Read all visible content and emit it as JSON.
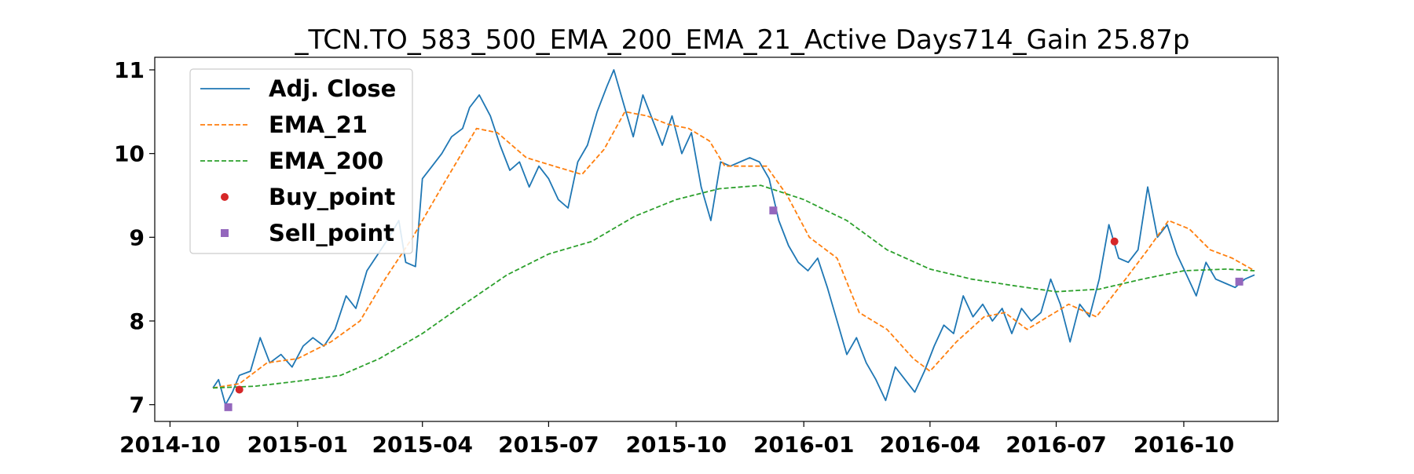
{
  "chart_data": {
    "type": "line",
    "title": "_TCN.TO_583_500_EMA_200_EMA_21_Active Days714_Gain  25.87p",
    "xlabel": "",
    "ylabel": "",
    "x_ticks": [
      "2014-10",
      "2015-01",
      "2015-04",
      "2015-07",
      "2015-10",
      "2016-01",
      "2016-04",
      "2016-07",
      "2016-10"
    ],
    "y_ticks": [
      "7",
      "8",
      "9",
      "10",
      "11"
    ],
    "xlim": [
      "2014-09-20",
      "2016-12-08"
    ],
    "ylim": [
      6.8,
      11.15
    ],
    "grid": false,
    "legend_position": "top-left",
    "series": [
      {
        "name": "Adj. Close",
        "style": "solid",
        "color": "#1f77b4",
        "points": [
          [
            "2014-11-01",
            7.2
          ],
          [
            "2014-11-05",
            7.3
          ],
          [
            "2014-11-10",
            7.0
          ],
          [
            "2014-11-15",
            7.15
          ],
          [
            "2014-11-20",
            7.35
          ],
          [
            "2014-11-28",
            7.4
          ],
          [
            "2014-12-05",
            7.8
          ],
          [
            "2014-12-12",
            7.5
          ],
          [
            "2014-12-20",
            7.6
          ],
          [
            "2014-12-28",
            7.45
          ],
          [
            "2015-01-05",
            7.7
          ],
          [
            "2015-01-12",
            7.8
          ],
          [
            "2015-01-20",
            7.7
          ],
          [
            "2015-01-28",
            7.9
          ],
          [
            "2015-02-05",
            8.3
          ],
          [
            "2015-02-12",
            8.15
          ],
          [
            "2015-02-20",
            8.6
          ],
          [
            "2015-02-28",
            8.8
          ],
          [
            "2015-03-08",
            9.0
          ],
          [
            "2015-03-15",
            9.2
          ],
          [
            "2015-03-20",
            8.7
          ],
          [
            "2015-03-27",
            8.65
          ],
          [
            "2015-04-01",
            9.7
          ],
          [
            "2015-04-08",
            9.85
          ],
          [
            "2015-04-15",
            10.0
          ],
          [
            "2015-04-22",
            10.2
          ],
          [
            "2015-04-30",
            10.3
          ],
          [
            "2015-05-05",
            10.55
          ],
          [
            "2015-05-12",
            10.7
          ],
          [
            "2015-05-20",
            10.45
          ],
          [
            "2015-05-27",
            10.1
          ],
          [
            "2015-06-03",
            9.8
          ],
          [
            "2015-06-10",
            9.9
          ],
          [
            "2015-06-17",
            9.6
          ],
          [
            "2015-06-24",
            9.85
          ],
          [
            "2015-07-01",
            9.7
          ],
          [
            "2015-07-08",
            9.45
          ],
          [
            "2015-07-15",
            9.35
          ],
          [
            "2015-07-22",
            9.9
          ],
          [
            "2015-07-29",
            10.1
          ],
          [
            "2015-08-05",
            10.5
          ],
          [
            "2015-08-12",
            10.8
          ],
          [
            "2015-08-17",
            11.0
          ],
          [
            "2015-08-24",
            10.6
          ],
          [
            "2015-08-31",
            10.2
          ],
          [
            "2015-09-07",
            10.7
          ],
          [
            "2015-09-14",
            10.4
          ],
          [
            "2015-09-21",
            10.1
          ],
          [
            "2015-09-28",
            10.45
          ],
          [
            "2015-10-05",
            10.0
          ],
          [
            "2015-10-12",
            10.25
          ],
          [
            "2015-10-19",
            9.6
          ],
          [
            "2015-10-26",
            9.2
          ],
          [
            "2015-11-02",
            9.9
          ],
          [
            "2015-11-09",
            9.85
          ],
          [
            "2015-11-16",
            9.9
          ],
          [
            "2015-11-23",
            9.95
          ],
          [
            "2015-11-30",
            9.9
          ],
          [
            "2015-12-07",
            9.7
          ],
          [
            "2015-12-14",
            9.2
          ],
          [
            "2015-12-21",
            8.9
          ],
          [
            "2015-12-28",
            8.7
          ],
          [
            "2016-01-04",
            8.6
          ],
          [
            "2016-01-11",
            8.75
          ],
          [
            "2016-01-18",
            8.4
          ],
          [
            "2016-01-25",
            8.0
          ],
          [
            "2016-02-01",
            7.6
          ],
          [
            "2016-02-08",
            7.8
          ],
          [
            "2016-02-15",
            7.5
          ],
          [
            "2016-02-22",
            7.3
          ],
          [
            "2016-02-29",
            7.05
          ],
          [
            "2016-03-07",
            7.45
          ],
          [
            "2016-03-14",
            7.3
          ],
          [
            "2016-03-21",
            7.15
          ],
          [
            "2016-03-28",
            7.4
          ],
          [
            "2016-04-04",
            7.7
          ],
          [
            "2016-04-11",
            7.95
          ],
          [
            "2016-04-18",
            7.85
          ],
          [
            "2016-04-25",
            8.3
          ],
          [
            "2016-05-02",
            8.05
          ],
          [
            "2016-05-09",
            8.2
          ],
          [
            "2016-05-16",
            8.0
          ],
          [
            "2016-05-23",
            8.15
          ],
          [
            "2016-05-30",
            7.85
          ],
          [
            "2016-06-06",
            8.15
          ],
          [
            "2016-06-13",
            8.0
          ],
          [
            "2016-06-20",
            8.1
          ],
          [
            "2016-06-27",
            8.5
          ],
          [
            "2016-07-04",
            8.2
          ],
          [
            "2016-07-11",
            7.75
          ],
          [
            "2016-07-18",
            8.2
          ],
          [
            "2016-07-25",
            8.05
          ],
          [
            "2016-08-01",
            8.5
          ],
          [
            "2016-08-08",
            9.15
          ],
          [
            "2016-08-15",
            8.75
          ],
          [
            "2016-08-22",
            8.7
          ],
          [
            "2016-08-29",
            8.85
          ],
          [
            "2016-09-05",
            9.6
          ],
          [
            "2016-09-12",
            9.0
          ],
          [
            "2016-09-19",
            9.15
          ],
          [
            "2016-09-26",
            8.8
          ],
          [
            "2016-10-03",
            8.55
          ],
          [
            "2016-10-10",
            8.3
          ],
          [
            "2016-10-17",
            8.7
          ],
          [
            "2016-10-24",
            8.5
          ],
          [
            "2016-10-31",
            8.45
          ],
          [
            "2016-11-07",
            8.4
          ],
          [
            "2016-11-14",
            8.5
          ],
          [
            "2016-11-21",
            8.55
          ]
        ]
      },
      {
        "name": "EMA_21",
        "style": "dashed",
        "color": "#ff7f0e",
        "points": [
          [
            "2014-11-01",
            7.2
          ],
          [
            "2014-11-20",
            7.25
          ],
          [
            "2014-12-10",
            7.5
          ],
          [
            "2015-01-01",
            7.55
          ],
          [
            "2015-01-25",
            7.75
          ],
          [
            "2015-02-15",
            8.0
          ],
          [
            "2015-03-05",
            8.5
          ],
          [
            "2015-03-25",
            9.0
          ],
          [
            "2015-04-15",
            9.6
          ],
          [
            "2015-05-10",
            10.3
          ],
          [
            "2015-05-25",
            10.25
          ],
          [
            "2015-06-15",
            9.95
          ],
          [
            "2015-07-05",
            9.85
          ],
          [
            "2015-07-25",
            9.75
          ],
          [
            "2015-08-10",
            10.05
          ],
          [
            "2015-08-25",
            10.5
          ],
          [
            "2015-09-10",
            10.45
          ],
          [
            "2015-09-25",
            10.35
          ],
          [
            "2015-10-10",
            10.3
          ],
          [
            "2015-10-25",
            10.15
          ],
          [
            "2015-11-05",
            9.85
          ],
          [
            "2015-11-25",
            9.85
          ],
          [
            "2015-12-05",
            9.85
          ],
          [
            "2015-12-20",
            9.5
          ],
          [
            "2016-01-05",
            9.0
          ],
          [
            "2016-01-25",
            8.75
          ],
          [
            "2016-02-10",
            8.1
          ],
          [
            "2016-03-01",
            7.9
          ],
          [
            "2016-03-20",
            7.55
          ],
          [
            "2016-04-01",
            7.4
          ],
          [
            "2016-04-20",
            7.75
          ],
          [
            "2016-05-10",
            8.05
          ],
          [
            "2016-05-25",
            8.1
          ],
          [
            "2016-06-10",
            7.9
          ],
          [
            "2016-06-25",
            8.05
          ],
          [
            "2016-07-10",
            8.2
          ],
          [
            "2016-07-30",
            8.05
          ],
          [
            "2016-08-20",
            8.5
          ],
          [
            "2016-09-05",
            8.85
          ],
          [
            "2016-09-20",
            9.2
          ],
          [
            "2016-10-05",
            9.1
          ],
          [
            "2016-10-20",
            8.85
          ],
          [
            "2016-11-05",
            8.75
          ],
          [
            "2016-11-21",
            8.6
          ]
        ]
      },
      {
        "name": "EMA_200",
        "style": "dashed",
        "color": "#2ca02c",
        "points": [
          [
            "2014-11-01",
            7.2
          ],
          [
            "2014-12-01",
            7.22
          ],
          [
            "2015-01-01",
            7.28
          ],
          [
            "2015-02-01",
            7.35
          ],
          [
            "2015-03-01",
            7.55
          ],
          [
            "2015-04-01",
            7.85
          ],
          [
            "2015-05-01",
            8.2
          ],
          [
            "2015-06-01",
            8.55
          ],
          [
            "2015-07-01",
            8.8
          ],
          [
            "2015-08-01",
            8.95
          ],
          [
            "2015-09-01",
            9.25
          ],
          [
            "2015-10-01",
            9.45
          ],
          [
            "2015-11-01",
            9.58
          ],
          [
            "2015-12-01",
            9.62
          ],
          [
            "2016-01-01",
            9.45
          ],
          [
            "2016-02-01",
            9.2
          ],
          [
            "2016-03-01",
            8.85
          ],
          [
            "2016-04-01",
            8.62
          ],
          [
            "2016-05-01",
            8.5
          ],
          [
            "2016-06-01",
            8.42
          ],
          [
            "2016-07-01",
            8.35
          ],
          [
            "2016-08-01",
            8.38
          ],
          [
            "2016-09-01",
            8.5
          ],
          [
            "2016-10-01",
            8.6
          ],
          [
            "2016-11-01",
            8.62
          ],
          [
            "2016-11-21",
            8.6
          ]
        ]
      },
      {
        "name": "Buy_point",
        "marker": "circle",
        "color": "#d62728",
        "points": [
          [
            "2014-11-20",
            7.18
          ],
          [
            "2016-08-12",
            8.95
          ]
        ]
      },
      {
        "name": "Sell_point",
        "marker": "square",
        "color": "#9467bd",
        "points": [
          [
            "2014-11-12",
            6.97
          ],
          [
            "2015-12-10",
            9.32
          ],
          [
            "2016-11-10",
            8.47
          ]
        ]
      }
    ]
  }
}
